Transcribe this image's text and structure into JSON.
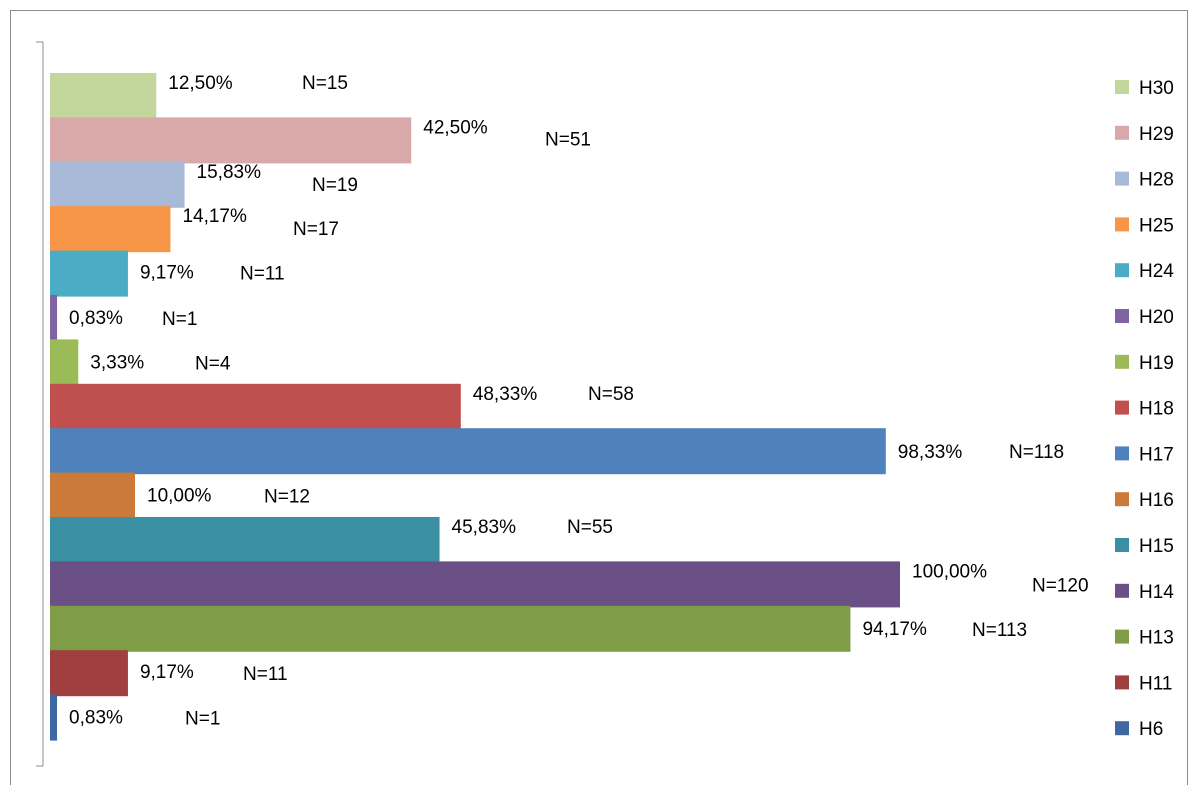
{
  "chart_data": {
    "type": "bar",
    "orientation": "horizontal",
    "series": [
      {
        "name": "H30",
        "value": 12.5,
        "percent_label": "12,50%",
        "n_label": "N=15",
        "color": "#c3d69b"
      },
      {
        "name": "H29",
        "value": 42.5,
        "percent_label": "42,50%",
        "n_label": "N=51",
        "color": "#d9a9a9"
      },
      {
        "name": "H28",
        "value": 15.83,
        "percent_label": "15,83%",
        "n_label": "N=19",
        "color": "#a9b9d8"
      },
      {
        "name": "H25",
        "value": 14.17,
        "percent_label": "14,17%",
        "n_label": "N=17",
        "color": "#f79646"
      },
      {
        "name": "H24",
        "value": 9.17,
        "percent_label": "9,17%",
        "n_label": "N=11",
        "color": "#4bacc6"
      },
      {
        "name": "H20",
        "value": 0.83,
        "percent_label": "0,83%",
        "n_label": "N=1",
        "color": "#8064a2"
      },
      {
        "name": "H19",
        "value": 3.33,
        "percent_label": "3,33%",
        "n_label": "N=4",
        "color": "#9bbb59"
      },
      {
        "name": "H18",
        "value": 48.33,
        "percent_label": "48,33%",
        "n_label": "N=58",
        "color": "#c0504d"
      },
      {
        "name": "H17",
        "value": 98.33,
        "percent_label": "98,33%",
        "n_label": "N=118",
        "color": "#4f81bd"
      },
      {
        "name": "H16",
        "value": 10.0,
        "percent_label": "10,00%",
        "n_label": "N=12",
        "color": "#cc7a3a"
      },
      {
        "name": "H15",
        "value": 45.83,
        "percent_label": "45,83%",
        "n_label": "N=55",
        "color": "#3a8fa2"
      },
      {
        "name": "H14",
        "value": 100.0,
        "percent_label": "100,00%",
        "n_label": "N=120",
        "color": "#6a5086"
      },
      {
        "name": "H13",
        "value": 94.17,
        "percent_label": "94,17%",
        "n_label": "N=113",
        "color": "#7f9c47"
      },
      {
        "name": "H11",
        "value": 9.17,
        "percent_label": "9,17%",
        "n_label": "N=11",
        "color": "#a0403e"
      },
      {
        "name": "H6",
        "value": 0.83,
        "percent_label": "0,83%",
        "n_label": "N=1",
        "color": "#3f68a0"
      }
    ],
    "xlim": [
      0,
      100
    ],
    "grid": false,
    "legend_position": "right"
  }
}
